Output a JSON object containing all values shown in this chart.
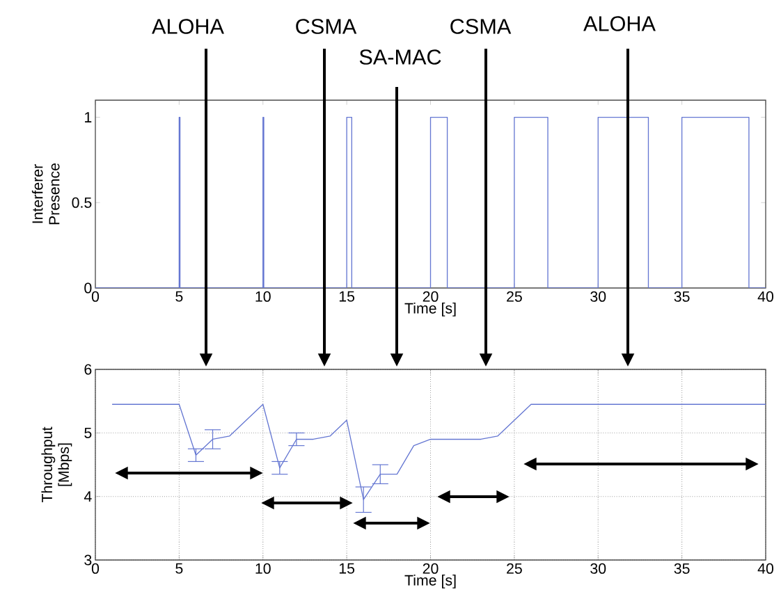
{
  "chart_data": [
    {
      "type": "step",
      "xlabel": "Time [s]",
      "ylabel": "Interferer Presence",
      "color": "#6577d2",
      "x": [
        0,
        5,
        5.05,
        10,
        10.05,
        15,
        15.3,
        20,
        21,
        25,
        27,
        30,
        33,
        35,
        39,
        40
      ],
      "values": [
        0,
        1,
        0,
        1,
        0,
        1,
        0,
        1,
        0,
        1,
        0,
        1,
        0,
        1,
        0,
        0
      ],
      "xlim": [
        0,
        40
      ],
      "ylim": [
        0,
        1.1
      ],
      "xticks": [
        0,
        5,
        10,
        15,
        20,
        25,
        30,
        35,
        40
      ],
      "yticks": [
        0,
        0.5,
        1
      ],
      "grid": false
    },
    {
      "type": "line",
      "xlabel": "Time [s]",
      "ylabel": "Throughput [Mbps]",
      "color": "#6577d2",
      "x": [
        1,
        2,
        3,
        4,
        5,
        6,
        7,
        8,
        9,
        10,
        11,
        12,
        13,
        14,
        15,
        16,
        17,
        18,
        19,
        20,
        21,
        22,
        23,
        24,
        25,
        26,
        40
      ],
      "values": [
        5.45,
        5.45,
        5.45,
        5.45,
        5.45,
        4.65,
        4.9,
        4.95,
        5.2,
        5.45,
        4.45,
        4.9,
        4.9,
        4.95,
        5.2,
        3.95,
        4.35,
        4.35,
        4.8,
        4.9,
        4.9,
        4.9,
        4.9,
        4.95,
        5.2,
        5.45,
        5.45
      ],
      "errors": [
        null,
        null,
        null,
        null,
        null,
        0.1,
        0.15,
        null,
        null,
        null,
        0.1,
        0.1,
        null,
        null,
        null,
        0.2,
        0.15,
        null,
        null,
        null,
        null,
        null,
        null,
        null,
        null,
        null,
        null
      ],
      "xlim": [
        0,
        40
      ],
      "ylim": [
        3,
        6
      ],
      "xticks": [
        0,
        5,
        10,
        15,
        20,
        25,
        30,
        35,
        40
      ],
      "yticks": [
        3,
        4,
        5,
        6
      ],
      "grid": true,
      "annotations": [
        "ALOHA",
        "CSMA",
        "SA-MAC",
        "CSMA",
        "ALOHA"
      ]
    }
  ]
}
